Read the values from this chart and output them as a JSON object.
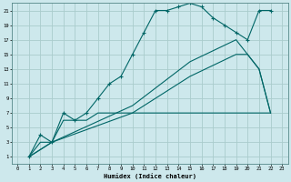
{
  "xlabel": "Humidex (Indice chaleur)",
  "bg_color": "#cde8ec",
  "grid_color": "#b0d0d8",
  "line_color": "#006666",
  "xlim": [
    -0.5,
    23.5
  ],
  "ylim": [
    0,
    22
  ],
  "xticks": [
    0,
    1,
    2,
    3,
    4,
    5,
    6,
    7,
    8,
    9,
    10,
    11,
    12,
    13,
    14,
    15,
    16,
    17,
    18,
    19,
    20,
    21,
    22,
    23
  ],
  "yticks": [
    1,
    3,
    5,
    7,
    9,
    11,
    13,
    15,
    17,
    19,
    21
  ],
  "series1_x": [
    1,
    2,
    3,
    4,
    5,
    6,
    7,
    8,
    9,
    10,
    11,
    12,
    13,
    14,
    15,
    16,
    17,
    18,
    19,
    20,
    21,
    22
  ],
  "series1_y": [
    1,
    4,
    3,
    7,
    6,
    7,
    9,
    11,
    12,
    15,
    18,
    21,
    21,
    21.5,
    22,
    21.5,
    20,
    19,
    18,
    17,
    21,
    21
  ],
  "series2_x": [
    1,
    2,
    3,
    4,
    5,
    6,
    7,
    8,
    9,
    10,
    11,
    12,
    13,
    14,
    15,
    16,
    17,
    18,
    19,
    20,
    21,
    22
  ],
  "series2_y": [
    1,
    3,
    3,
    6,
    6,
    6,
    7,
    7,
    7,
    7,
    7,
    7,
    7,
    7,
    7,
    7,
    7,
    7,
    7,
    7,
    7,
    7
  ],
  "series3_x": [
    1,
    3,
    10,
    15,
    19,
    20,
    21,
    22
  ],
  "series3_y": [
    1,
    3,
    8,
    14,
    17,
    15,
    13,
    7
  ],
  "series4_x": [
    1,
    3,
    10,
    15,
    19,
    20,
    21,
    22
  ],
  "series4_y": [
    1,
    3,
    7,
    12,
    15,
    15,
    13,
    7
  ]
}
